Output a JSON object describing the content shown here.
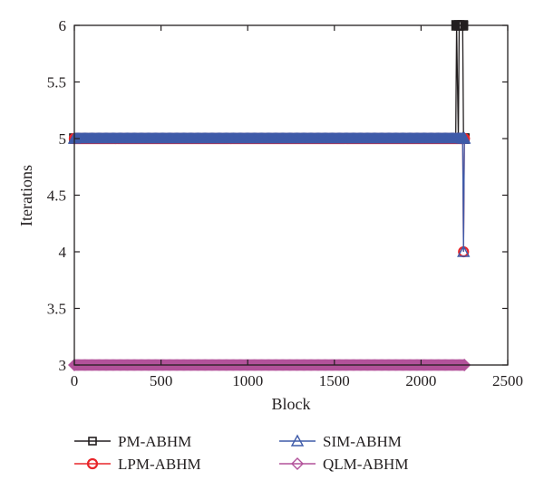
{
  "chart_data": {
    "type": "line",
    "xlabel": "Block",
    "ylabel": "Iterations",
    "xlim": [
      0,
      2500
    ],
    "ylim": [
      3,
      6
    ],
    "xticks": [
      0,
      500,
      1000,
      1500,
      2000,
      2500
    ],
    "yticks": [
      3,
      3.5,
      4,
      4.5,
      5,
      5.5,
      6
    ],
    "xtick_labels": [
      "0",
      "500",
      "1000",
      "1500",
      "2000",
      "2500"
    ],
    "ytick_labels": [
      "3",
      "3.5",
      "4",
      "4.5",
      "5",
      "5.5",
      "6"
    ],
    "grid": false,
    "legend_position": "bottom",
    "n_blocks": 2250,
    "series": [
      {
        "name": "PM-ABHM",
        "color": "#231f20",
        "marker": "square",
        "points": [
          [
            0,
            5
          ],
          [
            2200,
            5
          ],
          [
            2205,
            6
          ],
          [
            2215,
            5
          ],
          [
            2220,
            6
          ],
          [
            2240,
            6
          ],
          [
            2245,
            5
          ],
          [
            2250,
            5
          ]
        ]
      },
      {
        "name": "LPM-ABHM",
        "color": "#e8262b",
        "marker": "circle",
        "points": [
          [
            0,
            5
          ],
          [
            2240,
            5
          ],
          [
            2245,
            4
          ],
          [
            2250,
            5
          ]
        ]
      },
      {
        "name": "SIM-ABHM",
        "color": "#3f5ba9",
        "marker": "triangle",
        "points": [
          [
            0,
            5
          ],
          [
            2240,
            5
          ],
          [
            2245,
            4
          ],
          [
            2250,
            5
          ]
        ]
      },
      {
        "name": "QLM-ABHM",
        "color": "#b2529a",
        "marker": "diamond",
        "points": [
          [
            0,
            3
          ],
          [
            2250,
            3
          ]
        ]
      }
    ]
  }
}
